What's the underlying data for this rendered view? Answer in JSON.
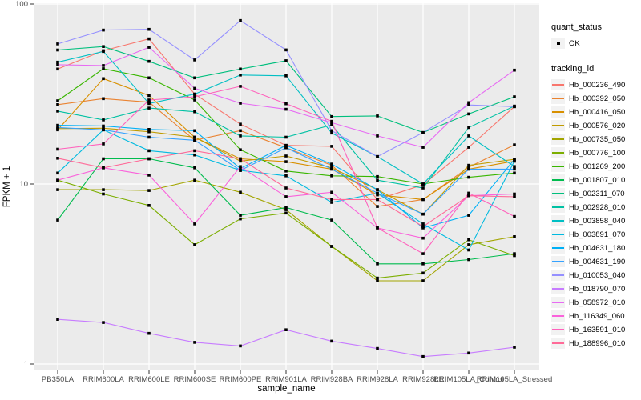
{
  "figure": {
    "xlabel": "sample_name",
    "ylabel": "FPKM + 1"
  },
  "legend": {
    "quant_status_title": "quant_status",
    "quant_status_items": [
      {
        "label": "OK",
        "marker": "black-point"
      }
    ],
    "tracking_id_title": "tracking_id"
  },
  "chart_data": {
    "type": "line",
    "x_type": "categorical",
    "y_scale": "log10",
    "ylim": [
      0.92,
      105
    ],
    "y_ticks": [
      1,
      10,
      100
    ],
    "grid": "on",
    "legend_position": "right",
    "panel_bg": "#EBEBEB",
    "grid_color": "#FFFFFF",
    "minor_grid_values": [
      3.162,
      31.62
    ],
    "point_color": "#000000",
    "axis_text_color": "#4D4D4D",
    "categories": [
      "PB350LA",
      "RRIM600LA",
      "RRIM600LE",
      "RRIM600SE",
      "RRIM600PE",
      "RRIM901LA",
      "RRIM928BA",
      "RRIM928LA",
      "RRIM928LE",
      "RRIM105LA_Control",
      "RRIM105LA_Stressed"
    ],
    "series": [
      {
        "name": "Hb_000236_490",
        "color": "#F8766D",
        "values": [
          43.5,
          55.0,
          64.0,
          31.6,
          21.5,
          16.4,
          16.2,
          8.2,
          9.9,
          16.0,
          26.9
        ]
      },
      {
        "name": "Hb_000392_050",
        "color": "#EA8331",
        "values": [
          27.6,
          29.8,
          28.5,
          17.5,
          19.8,
          15.9,
          12.7,
          7.5,
          8.2,
          12.4,
          16.5
        ]
      },
      {
        "name": "Hb_000416_050",
        "color": "#D89000",
        "values": [
          20.0,
          38.5,
          31.0,
          18.2,
          13.8,
          13.3,
          12.1,
          8.7,
          8.2,
          12.1,
          13.4
        ]
      },
      {
        "name": "Hb_000576_020",
        "color": "#C09B00",
        "values": [
          20.3,
          20.4,
          19.5,
          18.2,
          13.4,
          14.3,
          12.3,
          9.3,
          6.8,
          12.7,
          13.7
        ]
      },
      {
        "name": "Hb_000735_050",
        "color": "#A3A500",
        "values": [
          9.3,
          9.3,
          9.2,
          10.5,
          9.0,
          7.2,
          4.5,
          2.9,
          2.9,
          4.6,
          5.1
        ]
      },
      {
        "name": "Hb_000776_100",
        "color": "#7CAE00",
        "values": [
          10.5,
          8.8,
          7.6,
          4.6,
          6.4,
          6.9,
          4.5,
          3.0,
          3.2,
          4.9,
          4.0
        ]
      },
      {
        "name": "Hb_001269_200",
        "color": "#39B600",
        "values": [
          29.0,
          43.7,
          38.9,
          29.3,
          15.5,
          11.8,
          11.1,
          11.0,
          10.0,
          10.9,
          11.5
        ]
      },
      {
        "name": "Hb_001807_010",
        "color": "#00BB4E",
        "values": [
          6.3,
          13.8,
          13.8,
          12.3,
          6.7,
          7.4,
          6.3,
          3.6,
          3.6,
          3.8,
          4.1
        ]
      },
      {
        "name": "Hb_002311_070",
        "color": "#00BF7D",
        "values": [
          55.5,
          58.0,
          48.0,
          38.9,
          43.5,
          48.4,
          23.7,
          23.9,
          19.3,
          24.5,
          30.5
        ]
      },
      {
        "name": "Hb_002928_010",
        "color": "#00C1A3",
        "values": [
          25.4,
          22.7,
          26.4,
          25.2,
          18.5,
          18.2,
          21.3,
          10.5,
          9.5,
          20.6,
          27.1
        ]
      },
      {
        "name": "Hb_003858_040",
        "color": "#00BFC4",
        "values": [
          47.5,
          54.5,
          28.0,
          31.6,
          40.3,
          39.9,
          19.2,
          14.2,
          10.0,
          18.5,
          12.5
        ]
      },
      {
        "name": "Hb_003891_070",
        "color": "#00BAE0",
        "values": [
          11.5,
          20.0,
          15.3,
          14.5,
          11.9,
          11.1,
          7.9,
          8.9,
          6.0,
          4.3,
          13.4
        ]
      },
      {
        "name": "Hb_004631_180",
        "color": "#00B0F6",
        "values": [
          21.2,
          21.0,
          20.1,
          19.8,
          12.2,
          16.4,
          12.9,
          9.3,
          5.7,
          6.7,
          13.7
        ]
      },
      {
        "name": "Hb_004631_190",
        "color": "#35A2FF",
        "values": [
          20.6,
          20.0,
          18.2,
          17.5,
          11.9,
          15.9,
          12.1,
          8.9,
          6.8,
          12.1,
          12.1
        ]
      },
      {
        "name": "Hb_010053_040",
        "color": "#9590FF",
        "values": [
          60.0,
          71.6,
          72.3,
          48.9,
          80.9,
          55.6,
          19.8,
          14.2,
          19.3,
          27.5,
          26.9
        ]
      },
      {
        "name": "Hb_018790_070",
        "color": "#C77CFF",
        "values": [
          1.77,
          1.7,
          1.48,
          1.32,
          1.26,
          1.55,
          1.34,
          1.22,
          1.1,
          1.15,
          1.24
        ]
      },
      {
        "name": "Hb_058972_010",
        "color": "#E76BF3",
        "values": [
          46.0,
          45.5,
          57.5,
          34.0,
          28.1,
          26.0,
          21.9,
          18.5,
          16.0,
          28.3,
          42.9
        ]
      },
      {
        "name": "Hb_116349_060",
        "color": "#FA62DB",
        "values": [
          10.5,
          12.3,
          11.2,
          6.0,
          12.5,
          8.5,
          9.0,
          5.7,
          5.0,
          8.6,
          8.8
        ]
      },
      {
        "name": "Hb_163591_010",
        "color": "#FF62BC",
        "values": [
          15.6,
          16.7,
          29.3,
          30.5,
          34.9,
          27.9,
          22.3,
          5.7,
          4.1,
          8.9,
          6.6
        ]
      },
      {
        "name": "Hb_188996_010",
        "color": "#FF6A98",
        "values": [
          13.9,
          12.3,
          13.8,
          15.3,
          13.8,
          9.5,
          8.2,
          8.2,
          5.8,
          8.6,
          8.5
        ]
      }
    ]
  }
}
